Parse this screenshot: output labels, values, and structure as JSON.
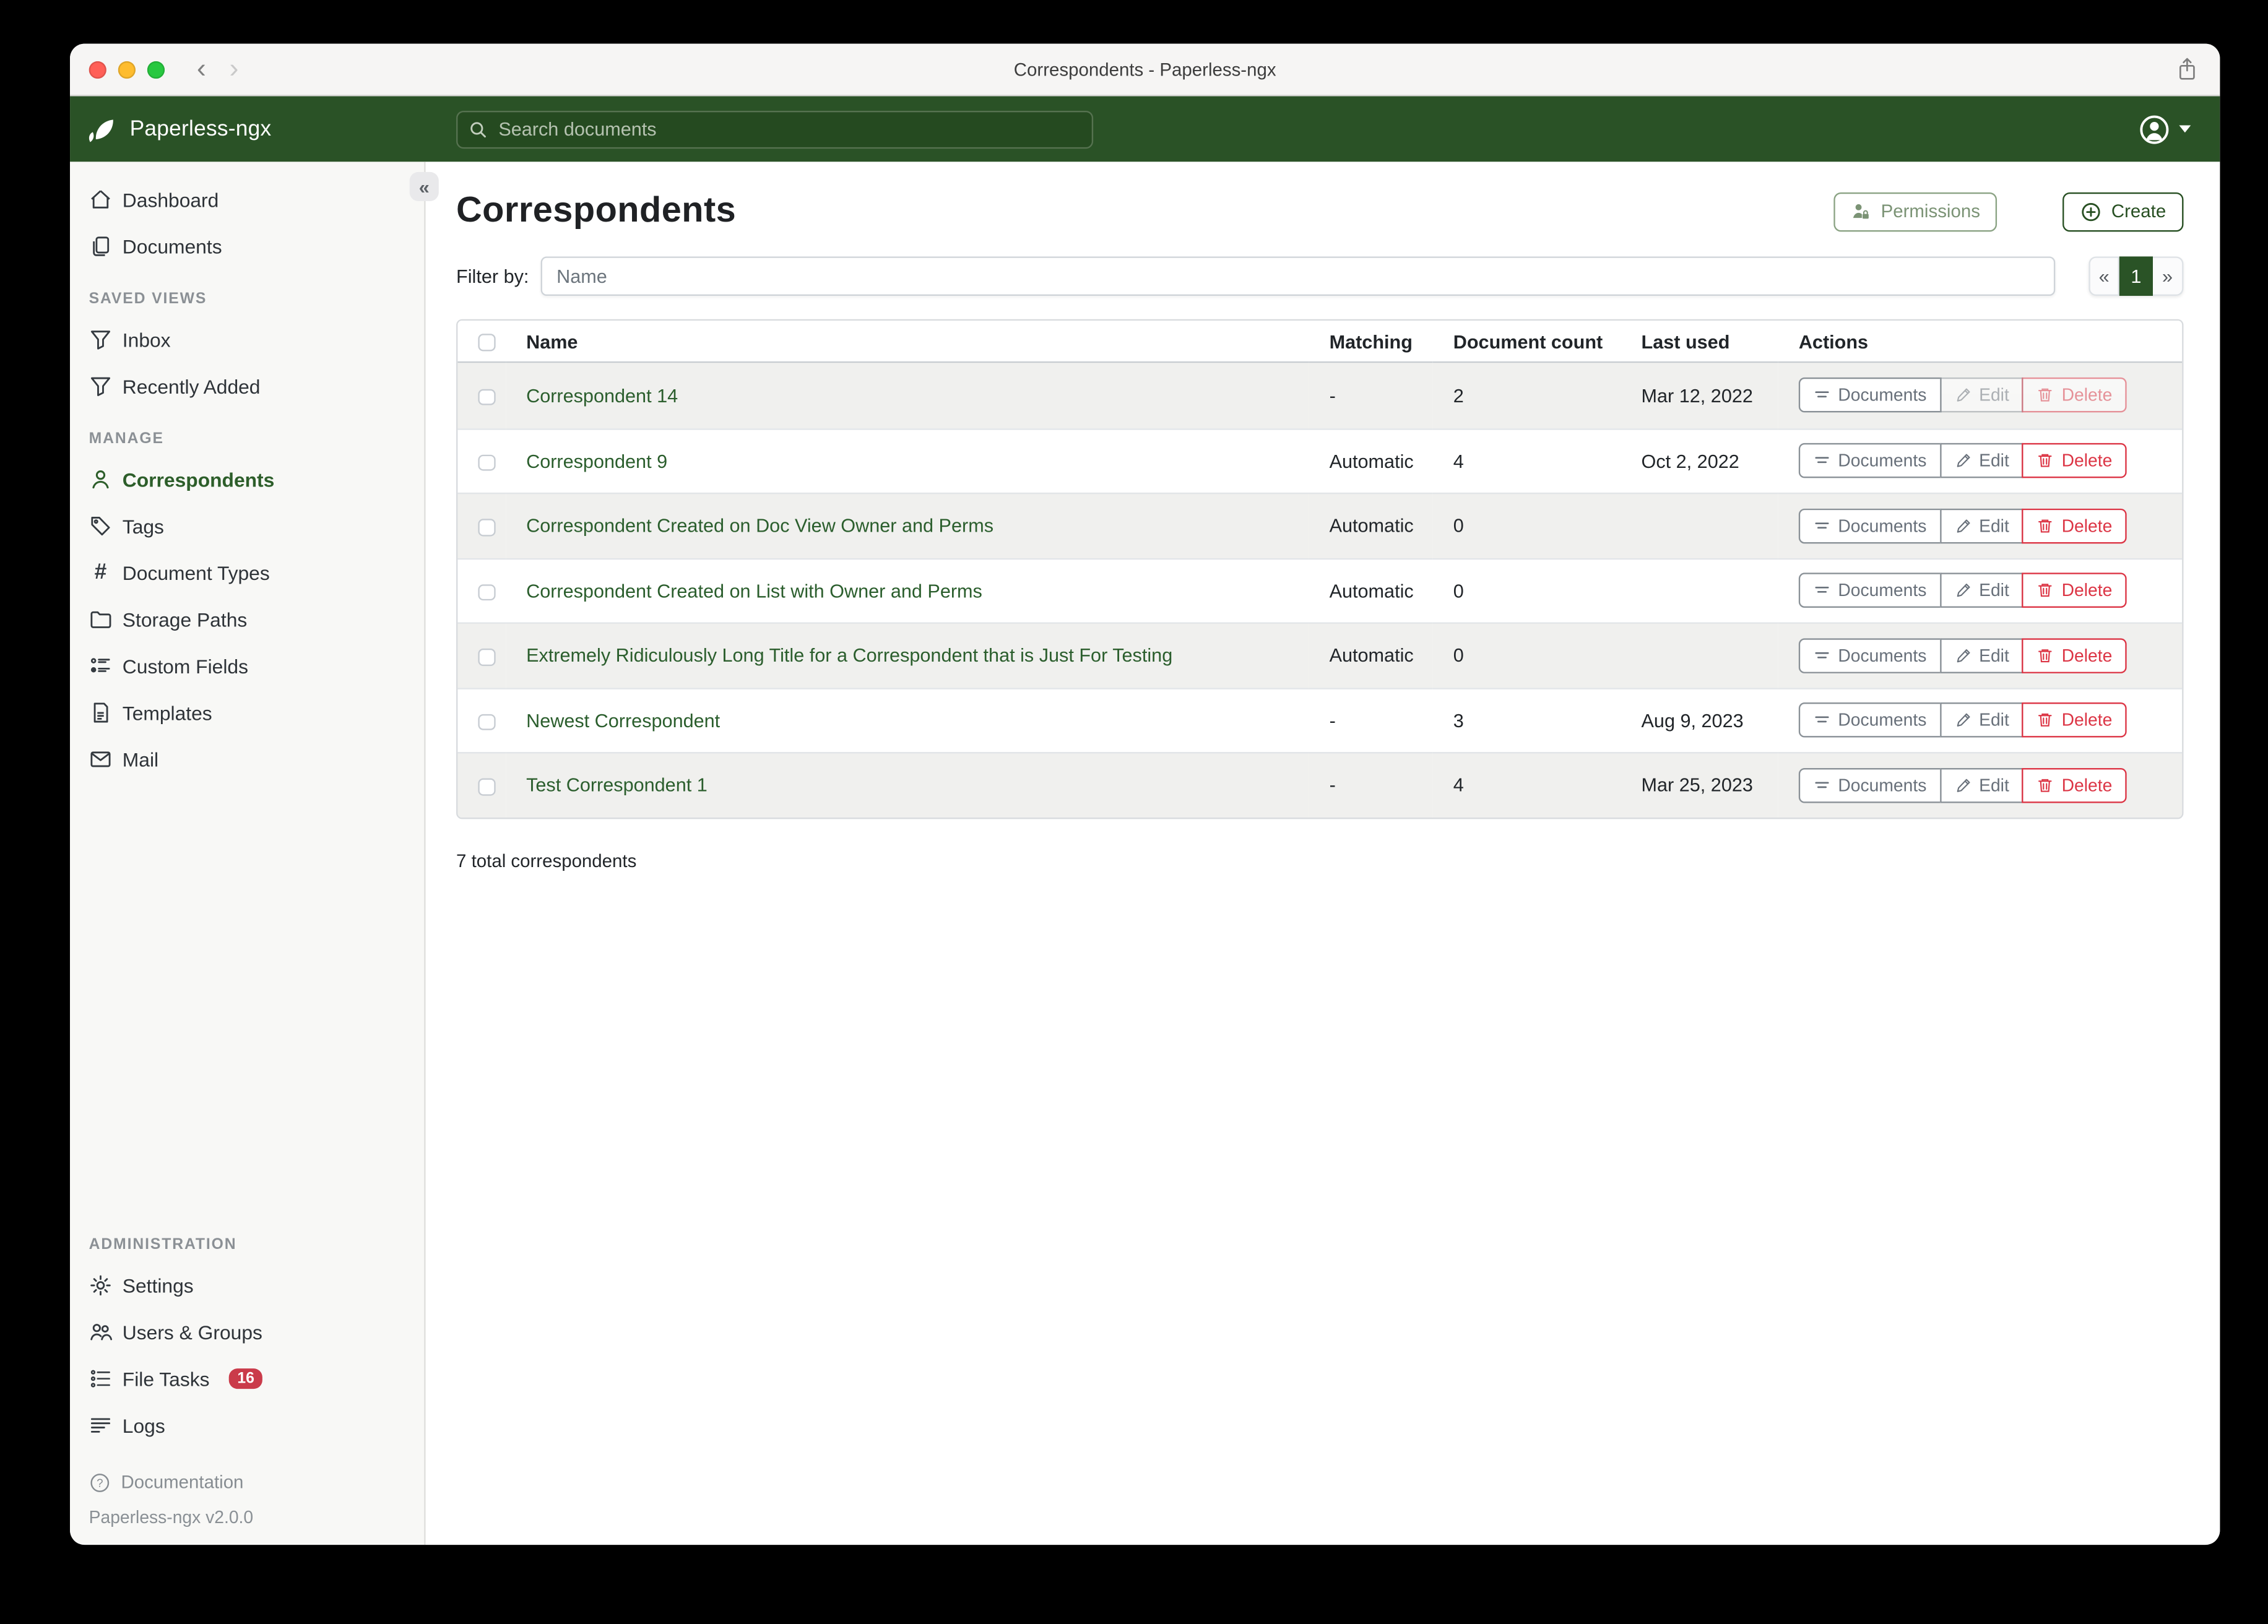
{
  "window": {
    "title": "Correspondents - Paperless-ngx",
    "back_glyph": "‹",
    "forward_glyph": "›"
  },
  "navbar": {
    "brand": "Paperless-ngx",
    "search_placeholder": "Search documents",
    "logo_icon": "leaf-icon",
    "search_icon": "magnifier-icon",
    "avatar_icon": "person-circle-icon"
  },
  "sidebar": {
    "collapse_glyph": "«",
    "sections": [
      {
        "header": "",
        "items": [
          {
            "label": "Dashboard",
            "icon": "home-icon"
          },
          {
            "label": "Documents",
            "icon": "copy-icon"
          }
        ]
      },
      {
        "header": "SAVED VIEWS",
        "items": [
          {
            "label": "Inbox",
            "icon": "funnel-icon"
          },
          {
            "label": "Recently Added",
            "icon": "funnel-icon"
          }
        ]
      },
      {
        "header": "MANAGE",
        "items": [
          {
            "label": "Correspondents",
            "icon": "person-icon",
            "active": true
          },
          {
            "label": "Tags",
            "icon": "tag-icon"
          },
          {
            "label": "Document Types",
            "icon": "hash-icon"
          },
          {
            "label": "Storage Paths",
            "icon": "folder-icon"
          },
          {
            "label": "Custom Fields",
            "icon": "ui-list-icon"
          },
          {
            "label": "Templates",
            "icon": "file-text-icon"
          },
          {
            "label": "Mail",
            "icon": "envelope-icon"
          }
        ]
      },
      {
        "header": "ADMINISTRATION",
        "pinned_bottom": true,
        "items": [
          {
            "label": "Settings",
            "icon": "gear-icon"
          },
          {
            "label": "Users & Groups",
            "icon": "people-icon"
          },
          {
            "label": "File Tasks",
            "icon": "list-task-icon",
            "badge": "16"
          },
          {
            "label": "Logs",
            "icon": "text-left-icon"
          }
        ]
      }
    ],
    "footer": {
      "documentation_label": "Documentation",
      "version": "Paperless-ngx v2.0.0"
    }
  },
  "page": {
    "title": "Correspondents",
    "permissions_label": "Permissions",
    "create_label": "Create",
    "filter_label": "Filter by:",
    "filter_placeholder": "Name",
    "pagination": {
      "prev": "«",
      "page": "1",
      "next": "»"
    },
    "total_label": "7 total correspondents"
  },
  "table": {
    "headers": {
      "name": "Name",
      "matching": "Matching",
      "count": "Document count",
      "last_used": "Last used",
      "actions": "Actions"
    },
    "actions": {
      "documents": "Documents",
      "edit": "Edit",
      "delete": "Delete"
    },
    "rows": [
      {
        "name": "Correspondent 14",
        "matching": "-",
        "count": "2",
        "last_used": "Mar 12, 2022",
        "actions_disabled": true
      },
      {
        "name": "Correspondent 9",
        "matching": "Automatic",
        "count": "4",
        "last_used": "Oct 2, 2022",
        "actions_disabled": false
      },
      {
        "name": "Correspondent Created on Doc View Owner and Perms",
        "matching": "Automatic",
        "count": "0",
        "last_used": "",
        "actions_disabled": false
      },
      {
        "name": "Correspondent Created on List with Owner and Perms",
        "matching": "Automatic",
        "count": "0",
        "last_used": "",
        "actions_disabled": false
      },
      {
        "name": "Extremely Ridiculously Long Title for a Correspondent that is Just For Testing",
        "matching": "Automatic",
        "count": "0",
        "last_used": "",
        "actions_disabled": false
      },
      {
        "name": "Newest Correspondent",
        "matching": "-",
        "count": "3",
        "last_used": "Aug 9, 2023",
        "actions_disabled": false
      },
      {
        "name": "Test Correspondent 1",
        "matching": "-",
        "count": "4",
        "last_used": "Mar 25, 2023",
        "actions_disabled": false
      }
    ]
  },
  "colors": {
    "navbar_green": "#2a5226",
    "link_green": "#2b5e2d",
    "active_page_green": "#2a5326",
    "permissions_green": "#7b9375",
    "create_green": "#274f22",
    "danger_red": "#dc3545",
    "badge_red": "#ca3b4a",
    "stripe_gray": "#f0f0ee"
  }
}
